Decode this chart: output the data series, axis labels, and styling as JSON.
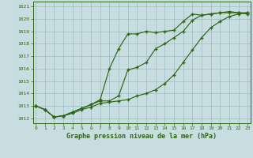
{
  "title": "Graphe pression niveau de la mer (hPa)",
  "bg_color": "#c8dde0",
  "grid_color": "#9bbcc4",
  "line_color": "#2d6614",
  "x_ticks": [
    0,
    1,
    2,
    3,
    4,
    5,
    6,
    7,
    8,
    9,
    10,
    11,
    12,
    13,
    14,
    15,
    16,
    17,
    18,
    19,
    20,
    21,
    22,
    23
  ],
  "y_ticks": [
    1012,
    1013,
    1014,
    1015,
    1016,
    1017,
    1018,
    1019,
    1020,
    1021
  ],
  "ylim": [
    1011.6,
    1021.4
  ],
  "xlim": [
    -0.3,
    23.3
  ],
  "line1": [
    1013.0,
    1012.7,
    1012.1,
    1012.2,
    1012.5,
    1012.8,
    1013.1,
    1013.5,
    1016.0,
    1017.6,
    1018.8,
    1018.8,
    1019.0,
    1018.9,
    1019.0,
    1019.1,
    1019.8,
    1020.4,
    1020.3,
    1020.4,
    1020.5,
    1020.6,
    1020.5,
    1020.5
  ],
  "line2": [
    1013.0,
    1012.7,
    1012.1,
    1012.2,
    1012.5,
    1012.8,
    1013.1,
    1013.4,
    1013.4,
    1013.8,
    1015.9,
    1016.1,
    1016.5,
    1017.6,
    1018.0,
    1018.5,
    1019.0,
    1019.9,
    1020.3,
    1020.4,
    1020.5,
    1020.5,
    1020.5,
    1020.4
  ],
  "line3": [
    1013.0,
    1012.7,
    1012.1,
    1012.2,
    1012.4,
    1012.7,
    1012.9,
    1013.2,
    1013.3,
    1013.4,
    1013.5,
    1013.8,
    1014.0,
    1014.3,
    1014.8,
    1015.5,
    1016.5,
    1017.5,
    1018.5,
    1019.3,
    1019.8,
    1020.2,
    1020.4,
    1020.5
  ]
}
